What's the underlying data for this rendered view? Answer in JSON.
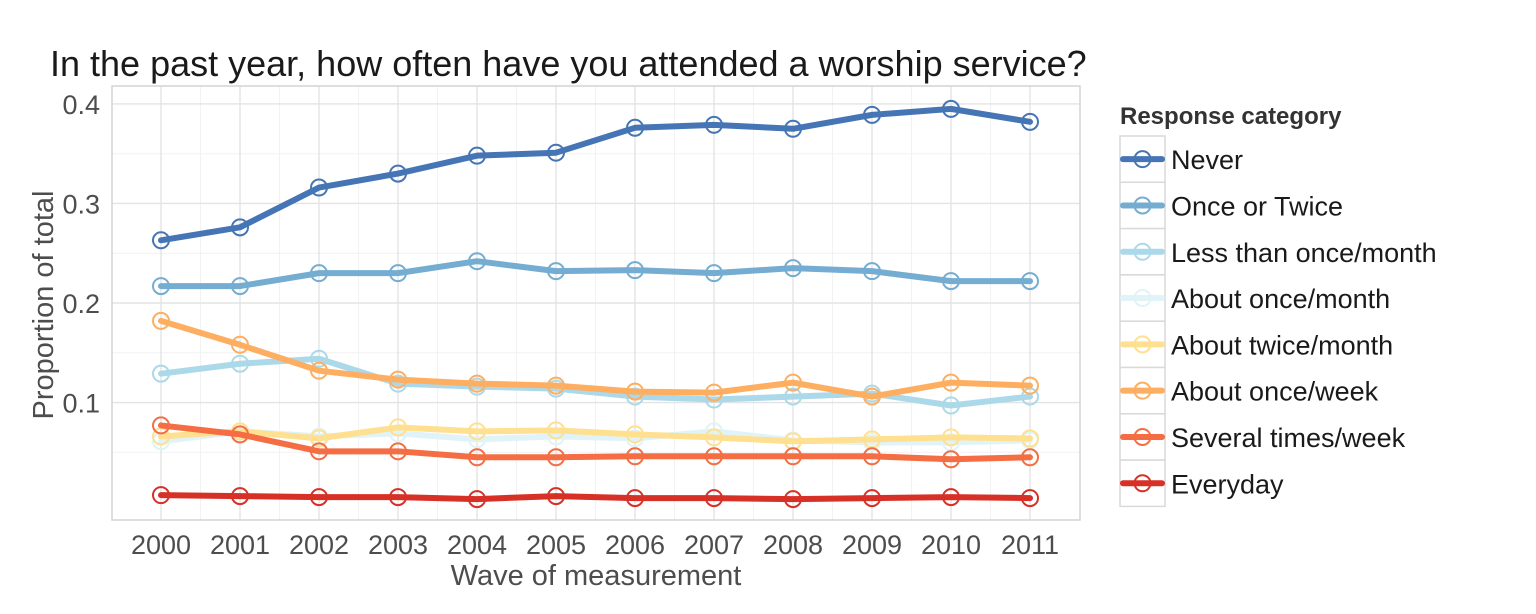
{
  "chart_data": {
    "type": "line",
    "title": "In the past year, how often have you attended a worship service?",
    "xlabel": "Wave of measurement",
    "ylabel": "Proportion of total",
    "x": [
      "2000",
      "2001",
      "2002",
      "2003",
      "2004",
      "2005",
      "2006",
      "2007",
      "2008",
      "2009",
      "2010",
      "2011"
    ],
    "ylim": [
      -0.018,
      0.418
    ],
    "yticks": [
      0.1,
      0.2,
      0.3,
      0.4
    ],
    "ytick_labels": [
      "0.1",
      "0.2",
      "0.3",
      "0.4"
    ],
    "grid": true,
    "legend_title": "Response category",
    "legend_position": "right",
    "series": [
      {
        "name": "Never",
        "color": "#4575b4",
        "values": [
          0.263,
          0.276,
          0.316,
          0.33,
          0.348,
          0.351,
          0.376,
          0.379,
          0.375,
          0.389,
          0.395,
          0.382
        ]
      },
      {
        "name": "Once or Twice",
        "color": "#74add1",
        "values": [
          0.217,
          0.217,
          0.23,
          0.23,
          0.242,
          0.232,
          0.233,
          0.23,
          0.235,
          0.232,
          0.222,
          0.222
        ]
      },
      {
        "name": "Less than once/month",
        "color": "#abd9e9",
        "values": [
          0.129,
          0.139,
          0.144,
          0.119,
          0.116,
          0.114,
          0.106,
          0.103,
          0.106,
          0.109,
          0.097,
          0.106
        ]
      },
      {
        "name": "About once/month",
        "color": "#e0f3f8",
        "values": [
          0.061,
          0.071,
          0.066,
          0.069,
          0.063,
          0.066,
          0.064,
          0.071,
          0.062,
          0.06,
          0.06,
          0.062
        ]
      },
      {
        "name": "About twice/month",
        "color": "#fee090",
        "values": [
          0.066,
          0.071,
          0.064,
          0.075,
          0.071,
          0.072,
          0.068,
          0.065,
          0.061,
          0.063,
          0.065,
          0.064
        ]
      },
      {
        "name": "About once/week",
        "color": "#fdae61",
        "values": [
          0.182,
          0.158,
          0.132,
          0.123,
          0.119,
          0.117,
          0.111,
          0.11,
          0.12,
          0.106,
          0.12,
          0.117
        ]
      },
      {
        "name": "Several times/week",
        "color": "#f46d43",
        "values": [
          0.077,
          0.068,
          0.051,
          0.051,
          0.045,
          0.045,
          0.046,
          0.046,
          0.046,
          0.046,
          0.043,
          0.045
        ]
      },
      {
        "name": "Everyday",
        "color": "#d73027",
        "values": [
          0.007,
          0.006,
          0.005,
          0.005,
          0.003,
          0.006,
          0.004,
          0.004,
          0.003,
          0.004,
          0.005,
          0.004
        ]
      }
    ]
  }
}
